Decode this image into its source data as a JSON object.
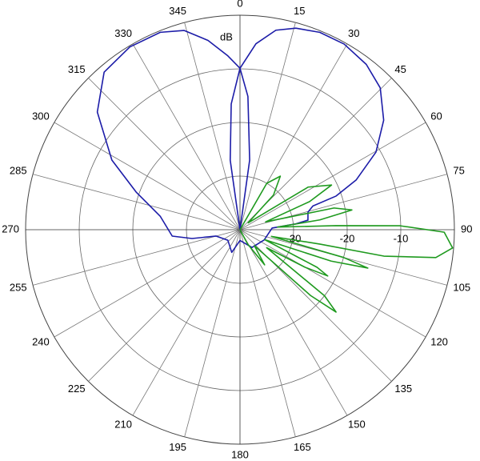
{
  "chart_data": {
    "type": "polar",
    "r_label": "dB",
    "rlim": [
      -40,
      0
    ],
    "rticks": [
      -30,
      -20,
      -10
    ],
    "thetaticks": [
      0,
      15,
      30,
      45,
      60,
      75,
      90,
      105,
      120,
      135,
      150,
      165,
      180,
      195,
      210,
      225,
      240,
      255,
      270,
      285,
      300,
      315,
      330,
      345
    ],
    "grid": true,
    "series": [
      {
        "color": "#1c1ca8",
        "theta": [
          0,
          352,
          356,
          0,
          4.9,
          10.2,
          15.5,
          22,
          29.3,
          37.4,
          44.7,
          52.7,
          60.3,
          66.8,
          70.7,
          72,
          75.5,
          82,
          84,
          87,
          113,
          146,
          180,
          200,
          229,
          255,
          259.6,
          264.6,
          279.6,
          289.9,
          298.5,
          309.5,
          319.2,
          328.9,
          338,
          344.3,
          350.4,
          356,
          0,
          3.4,
          7.9,
          0
        ],
        "values": [
          -40,
          -26.9,
          -16.5,
          -9.9,
          -5.2,
          -2.2,
          -1.0,
          -0.3,
          -0.3,
          -1.2,
          -2.8,
          -6.3,
          -10.8,
          -16.4,
          -21.0,
          -25.7,
          -26.9,
          -27.2,
          -29.5,
          -34,
          -35.1,
          -36,
          -38,
          -35.5,
          -37,
          -35.4,
          -30.9,
          -27.3,
          -24.9,
          -19.4,
          -12.8,
          -5.5,
          -1.2,
          -0.2,
          -0.3,
          -1.4,
          -4.2,
          -7.5,
          -9.9,
          -15.1,
          -26.9,
          -40
        ]
      },
      {
        "color": "#1f9a1f",
        "theta": [
          0,
          30,
          37,
          44,
          50,
          58,
          64,
          68,
          73,
          77,
          80,
          83,
          86,
          87.6,
          88.6,
          90.7,
          94.9,
          98.1,
          100.4,
          100.2,
          102,
          105,
          106.7,
          109,
          112,
          116,
          117.8,
          120,
          124,
          128,
          130.6,
          133,
          138,
          145,
          152,
          180
        ],
        "values": [
          -40,
          -30,
          -27.5,
          -31,
          -38,
          -25,
          -21,
          -26,
          -35,
          -22,
          -18.8,
          -25,
          -33,
          -22.1,
          -10.1,
          -1.9,
          -0.2,
          -3.1,
          -12.7,
          -24.8,
          -34,
          -20,
          -15.1,
          -22,
          -35,
          -24,
          -21.5,
          -26,
          -34,
          -20,
          -16.4,
          -22,
          -36,
          -32,
          -37,
          -40
        ]
      }
    ]
  }
}
